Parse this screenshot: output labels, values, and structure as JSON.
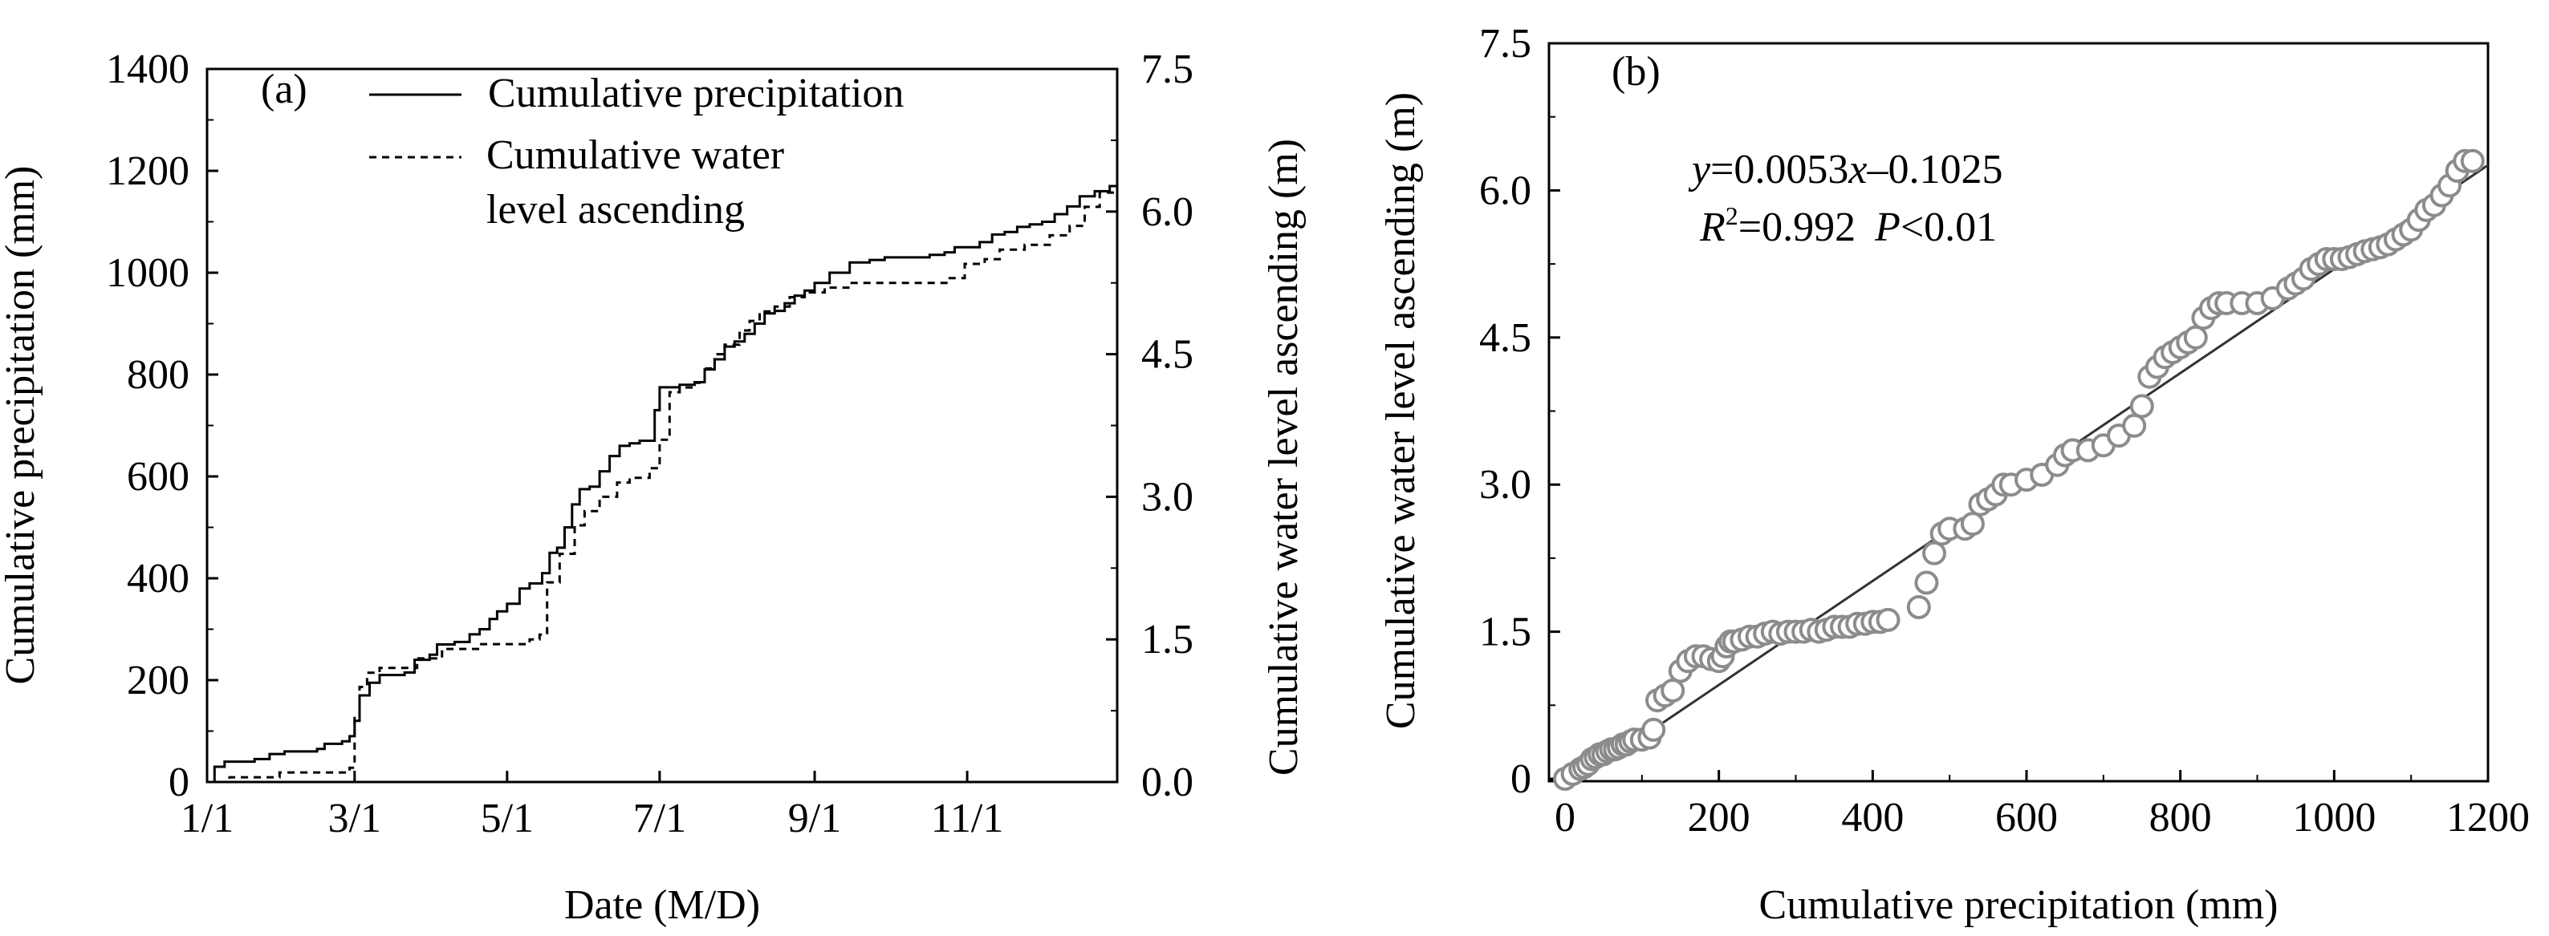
{
  "chart_data": [
    {
      "panel_label": "(a)",
      "type": "line",
      "xlabel": "Date (M/D)",
      "ylabel_left": "Cumulative precipitation (mm)",
      "ylabel_right": "Cumulative water level ascending (m)",
      "x_unit": "day of year",
      "xlim": [
        1,
        365
      ],
      "x_ticks": [
        1,
        60,
        121,
        182,
        244,
        305
      ],
      "x_tick_labels": [
        "1/1",
        "3/1",
        "5/1",
        "7/1",
        "9/1",
        "11/1"
      ],
      "ylim_left": [
        0,
        1400
      ],
      "y_ticks_left": [
        "0",
        "200",
        "400",
        "600",
        "800",
        "1000",
        "1200",
        "1400"
      ],
      "ylim_right": [
        0,
        7.5
      ],
      "y_ticks_right": [
        "0.0",
        "1.5",
        "3.0",
        "4.5",
        "6.0",
        "7.5"
      ],
      "legend_position": "top-left",
      "series": [
        {
          "name": "Cumulative precipitation",
          "line_style": "solid",
          "axis": "left",
          "x": [
            1,
            4,
            8,
            20,
            26,
            32,
            45,
            48,
            55,
            58,
            60,
            62,
            66,
            70,
            80,
            84,
            90,
            93,
            100,
            106,
            110,
            114,
            117,
            121,
            126,
            130,
            135,
            138,
            141,
            144,
            147,
            150,
            154,
            158,
            162,
            166,
            170,
            174,
            180,
            182,
            190,
            196,
            200,
            204,
            208,
            212,
            216,
            220,
            224,
            228,
            232,
            236,
            240,
            244,
            250,
            258,
            266,
            272,
            280,
            290,
            296,
            300,
            310,
            315,
            320,
            325,
            330,
            335,
            340,
            345,
            350,
            356,
            362,
            365
          ],
          "values": [
            0,
            30,
            40,
            45,
            55,
            60,
            65,
            75,
            80,
            90,
            120,
            170,
            195,
            210,
            215,
            240,
            250,
            270,
            275,
            290,
            300,
            320,
            335,
            350,
            380,
            390,
            410,
            450,
            460,
            500,
            545,
            575,
            580,
            610,
            640,
            660,
            665,
            670,
            730,
            775,
            780,
            785,
            810,
            830,
            855,
            865,
            880,
            900,
            920,
            925,
            940,
            955,
            965,
            980,
            1000,
            1020,
            1025,
            1030,
            1030,
            1035,
            1040,
            1050,
            1060,
            1075,
            1080,
            1090,
            1095,
            1100,
            1115,
            1130,
            1150,
            1160,
            1170,
            1180
          ]
        },
        {
          "name": "Cumulative water level ascending",
          "line_style": "dashed",
          "axis": "right",
          "x": [
            1,
            10,
            30,
            50,
            58,
            60,
            62,
            65,
            70,
            85,
            95,
            110,
            130,
            134,
            137,
            142,
            148,
            152,
            158,
            165,
            170,
            178,
            182,
            186,
            190,
            196,
            200,
            204,
            208,
            214,
            218,
            222,
            228,
            234,
            240,
            248,
            258,
            268,
            288,
            298,
            304,
            312,
            318,
            328,
            338,
            346,
            352,
            358,
            365
          ],
          "values": [
            0.0,
            0.05,
            0.1,
            0.1,
            0.15,
            0.7,
            1.0,
            1.15,
            1.2,
            1.3,
            1.4,
            1.45,
            1.5,
            1.55,
            2.1,
            2.4,
            2.7,
            2.85,
            3.0,
            3.15,
            3.2,
            3.3,
            3.6,
            4.1,
            4.15,
            4.2,
            4.35,
            4.5,
            4.6,
            4.75,
            4.85,
            4.95,
            5.0,
            5.1,
            5.15,
            5.2,
            5.25,
            5.25,
            5.25,
            5.3,
            5.45,
            5.5,
            5.6,
            5.65,
            5.75,
            5.85,
            6.05,
            6.2,
            6.35
          ]
        }
      ]
    },
    {
      "panel_label": "(b)",
      "type": "scatter",
      "xlabel": "Cumulative precipitation (mm)",
      "ylabel": "Cumulative water level ascending (m)",
      "xlim": [
        0,
        1200
      ],
      "x_ticks": [
        "0",
        "200",
        "400",
        "600",
        "800",
        "1000",
        "1200"
      ],
      "ylim": [
        0,
        7.5
      ],
      "y_ticks": [
        "0",
        "1.5",
        "3.0",
        "4.5",
        "6.0",
        "7.5"
      ],
      "regression": {
        "equation_y": "y",
        "equation_x": "x",
        "equation_rest": "=0.0053",
        "equation_tail": "–0.1025",
        "r2_label": "R",
        "r2_sup": "2",
        "r2_value": "=0.992",
        "p_label": "P",
        "p_value": "<0.01",
        "slope": 0.0053,
        "intercept": -0.1025,
        "x_range": [
          0,
          1200
        ]
      },
      "points": {
        "x": [
          0,
          10,
          20,
          25,
          30,
          35,
          40,
          45,
          50,
          55,
          60,
          65,
          70,
          75,
          80,
          85,
          90,
          100,
          110,
          115,
          120,
          130,
          140,
          150,
          160,
          170,
          180,
          190,
          200,
          205,
          210,
          215,
          220,
          230,
          240,
          250,
          260,
          270,
          280,
          290,
          300,
          310,
          320,
          330,
          340,
          350,
          360,
          370,
          380,
          390,
          400,
          410,
          420,
          460,
          470,
          480,
          490,
          500,
          520,
          530,
          540,
          550,
          560,
          570,
          580,
          600,
          620,
          640,
          650,
          660,
          680,
          700,
          720,
          740,
          750,
          760,
          770,
          780,
          790,
          800,
          810,
          820,
          830,
          840,
          850,
          860,
          880,
          900,
          920,
          940,
          950,
          960,
          970,
          980,
          990,
          1000,
          1010,
          1020,
          1030,
          1040,
          1050,
          1060,
          1070,
          1080,
          1090,
          1100,
          1110,
          1120,
          1130,
          1140,
          1150,
          1160,
          1170,
          1180
        ],
        "y": [
          0.0,
          0.05,
          0.1,
          0.12,
          0.15,
          0.2,
          0.22,
          0.25,
          0.25,
          0.28,
          0.3,
          0.3,
          0.32,
          0.35,
          0.35,
          0.38,
          0.4,
          0.4,
          0.42,
          0.5,
          0.8,
          0.85,
          0.9,
          1.1,
          1.2,
          1.25,
          1.25,
          1.22,
          1.2,
          1.25,
          1.35,
          1.4,
          1.4,
          1.42,
          1.45,
          1.45,
          1.48,
          1.5,
          1.48,
          1.5,
          1.5,
          1.5,
          1.52,
          1.5,
          1.52,
          1.55,
          1.55,
          1.55,
          1.58,
          1.58,
          1.6,
          1.6,
          1.62,
          1.75,
          2.0,
          2.3,
          2.5,
          2.55,
          2.55,
          2.6,
          2.8,
          2.85,
          2.9,
          3.0,
          3.0,
          3.05,
          3.1,
          3.2,
          3.3,
          3.35,
          3.35,
          3.4,
          3.5,
          3.6,
          3.8,
          4.1,
          4.2,
          4.3,
          4.35,
          4.4,
          4.45,
          4.5,
          4.7,
          4.8,
          4.85,
          4.85,
          4.85,
          4.85,
          4.9,
          5.0,
          5.05,
          5.1,
          5.2,
          5.25,
          5.3,
          5.3,
          5.3,
          5.32,
          5.35,
          5.38,
          5.4,
          5.42,
          5.45,
          5.5,
          5.55,
          5.6,
          5.7,
          5.8,
          5.85,
          5.95,
          6.05,
          6.2,
          6.3,
          6.3
        ]
      }
    }
  ]
}
